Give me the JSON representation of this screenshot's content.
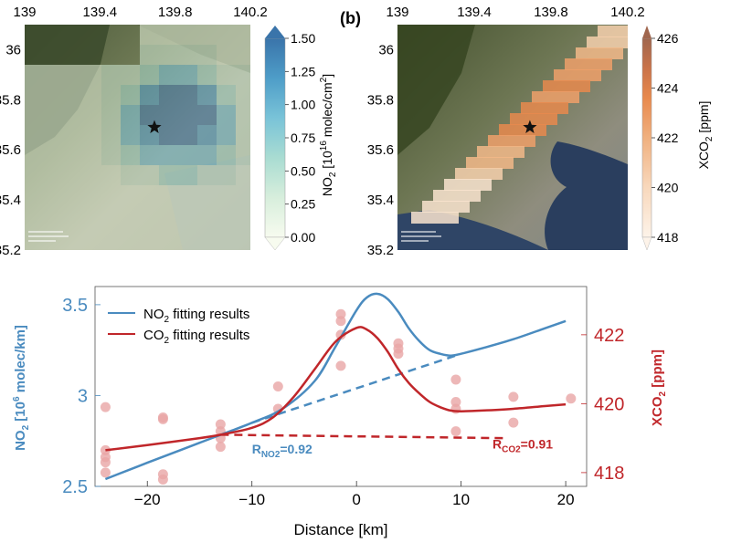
{
  "panel_b_label": "(b)",
  "chart_data": [
    {
      "type": "heatmap",
      "panel": "a",
      "colorbar": {
        "label_main": "NO",
        "label_sub": "2",
        "label_rest": " [10",
        "label_sup": "16",
        "label_end": " molec/cm",
        "label_sup2": "2",
        "label_close": "]",
        "ticks": [
          "1.50",
          "1.25",
          "1.00",
          "0.75",
          "0.50",
          "0.25",
          "0.00"
        ],
        "range": [
          0,
          1.5
        ],
        "colors": [
          "#f7fbef",
          "#d7eedc",
          "#a9dcd2",
          "#79c3d8",
          "#4e9dc8",
          "#3a74aa"
        ]
      },
      "x_ticks": [
        "139",
        "139.4",
        "139.8",
        "140.2"
      ],
      "y_ticks": [
        "36",
        "35.8",
        "35.6",
        "35.4",
        "35.2"
      ],
      "xlim": [
        139,
        140.2
      ],
      "ylim": [
        35.2,
        36.1
      ],
      "marker": {
        "lon": 139.69,
        "lat": 35.69,
        "symbol": "star"
      }
    },
    {
      "type": "heatmap",
      "panel": "b",
      "colorbar": {
        "label_main": "XCO",
        "label_sub": "2",
        "label_rest": " [ppm]",
        "ticks": [
          "426",
          "424",
          "422",
          "420",
          "418"
        ],
        "range": [
          418,
          426
        ],
        "colors": [
          "#fdf3e9",
          "#f8d8bc",
          "#f0b07f",
          "#e8894d",
          "#c9734a",
          "#a0664e"
        ]
      },
      "x_ticks": [
        "139",
        "139.4",
        "139.8",
        "140.2"
      ],
      "y_ticks": [
        "36",
        "35.8",
        "35.6",
        "35.4",
        "35.2"
      ],
      "xlim": [
        139,
        140.2
      ],
      "ylim": [
        35.2,
        36.1
      ],
      "marker": {
        "lon": 139.69,
        "lat": 35.69,
        "symbol": "star"
      }
    },
    {
      "type": "line",
      "panel": "c",
      "xlabel": "Distance [km]",
      "ylabel_left": {
        "a": "NO",
        "sub": "2",
        "b": " [10",
        "sup": "6",
        "c": " molec/km]"
      },
      "ylabel_right": {
        "a": "XCO",
        "sub": "2",
        "b": " [ppm]"
      },
      "xlim": [
        -25,
        22
      ],
      "ylim_left": [
        2.5,
        3.6
      ],
      "ylim_right": [
        417.6,
        423.4
      ],
      "x_ticks": [
        -20,
        -10,
        0,
        10,
        20
      ],
      "y_ticks_left": [
        "2.5",
        "3",
        "3.5"
      ],
      "y_ticks_left_values": [
        2.5,
        3.0,
        3.5
      ],
      "y_ticks_right": [
        "418",
        "420",
        "422"
      ],
      "y_ticks_right_values": [
        418,
        420,
        422
      ],
      "legend": [
        {
          "label_a": "NO",
          "sub": "2",
          "label_b": " fitting results",
          "color": "#4a8bbf"
        },
        {
          "label_a": "CO",
          "sub": "2",
          "label_b": " fitting results",
          "color": "#c0262a"
        }
      ],
      "legend_position": "top-left",
      "series": [
        {
          "axis": "left",
          "color": "#4a8bbf",
          "fit": [
            [
              -24,
              2.54
            ],
            [
              -20,
              2.63
            ],
            [
              -15,
              2.74
            ],
            [
              -10,
              2.85
            ],
            [
              -7,
              2.93
            ],
            [
              -4,
              3.08
            ],
            [
              -2,
              3.27
            ],
            [
              0,
              3.47
            ],
            [
              1,
              3.54
            ],
            [
              2,
              3.56
            ],
            [
              3,
              3.53
            ],
            [
              4,
              3.46
            ],
            [
              5,
              3.37
            ],
            [
              6,
              3.3
            ],
            [
              7,
              3.25
            ],
            [
              8,
              3.23
            ],
            [
              9,
              3.22
            ],
            [
              10,
              3.23
            ],
            [
              12,
              3.26
            ],
            [
              15,
              3.31
            ],
            [
              18,
              3.37
            ],
            [
              20,
              3.41
            ]
          ],
          "baseline": [
            [
              -10,
              2.85
            ],
            [
              9.5,
              3.22
            ]
          ]
        },
        {
          "axis": "right",
          "color": "#c0262a",
          "fit": [
            [
              -24,
              418.65
            ],
            [
              -20,
              418.8
            ],
            [
              -15,
              419.0
            ],
            [
              -13,
              419.1
            ],
            [
              -10,
              419.3
            ],
            [
              -8,
              419.6
            ],
            [
              -6,
              420.2
            ],
            [
              -4,
              421.0
            ],
            [
              -2,
              421.8
            ],
            [
              0,
              422.2
            ],
            [
              1,
              422.15
            ],
            [
              2,
              421.9
            ],
            [
              3,
              421.5
            ],
            [
              4,
              421.0
            ],
            [
              5,
              420.6
            ],
            [
              6,
              420.3
            ],
            [
              7,
              420.05
            ],
            [
              8,
              419.9
            ],
            [
              9,
              419.8
            ],
            [
              10,
              419.78
            ],
            [
              12,
              419.8
            ],
            [
              15,
              419.85
            ],
            [
              18,
              419.93
            ],
            [
              20,
              419.98
            ]
          ],
          "baseline": [
            [
              -13,
              419.1
            ],
            [
              14,
              419.0
            ]
          ]
        }
      ],
      "scatter": {
        "color": "#e8a5a5",
        "axis": "right",
        "points": [
          [
            -24,
            419.9
          ],
          [
            -24,
            418.65
          ],
          [
            -24,
            418.45
          ],
          [
            -24,
            418.3
          ],
          [
            -24,
            418.0
          ],
          [
            -18.5,
            419.6
          ],
          [
            -18.5,
            419.55
          ],
          [
            -18.5,
            417.95
          ],
          [
            -18.5,
            417.8
          ],
          [
            -13,
            419.4
          ],
          [
            -13,
            419.2
          ],
          [
            -13,
            419.0
          ],
          [
            -13,
            418.75
          ],
          [
            -7.5,
            420.5
          ],
          [
            -7.5,
            419.85
          ],
          [
            -1.5,
            422.6
          ],
          [
            -1.5,
            422.4
          ],
          [
            -1.5,
            422.0
          ],
          [
            -1.5,
            421.1
          ],
          [
            4,
            421.75
          ],
          [
            4,
            421.6
          ],
          [
            4,
            421.45
          ],
          [
            9.5,
            420.7
          ],
          [
            9.5,
            420.05
          ],
          [
            9.5,
            419.85
          ],
          [
            9.5,
            419.2
          ],
          [
            15,
            420.2
          ],
          [
            15,
            419.45
          ],
          [
            20.5,
            420.15
          ]
        ]
      },
      "annotations": [
        {
          "a": "R",
          "sub": "NO2",
          "b": "=0.92",
          "color": "#4a8bbf",
          "x": -10,
          "y_left": 2.68
        },
        {
          "a": "R",
          "sub": "CO2",
          "b": "=0.91",
          "color": "#c0262a",
          "x": 13,
          "y_right": 418.7
        }
      ]
    }
  ]
}
